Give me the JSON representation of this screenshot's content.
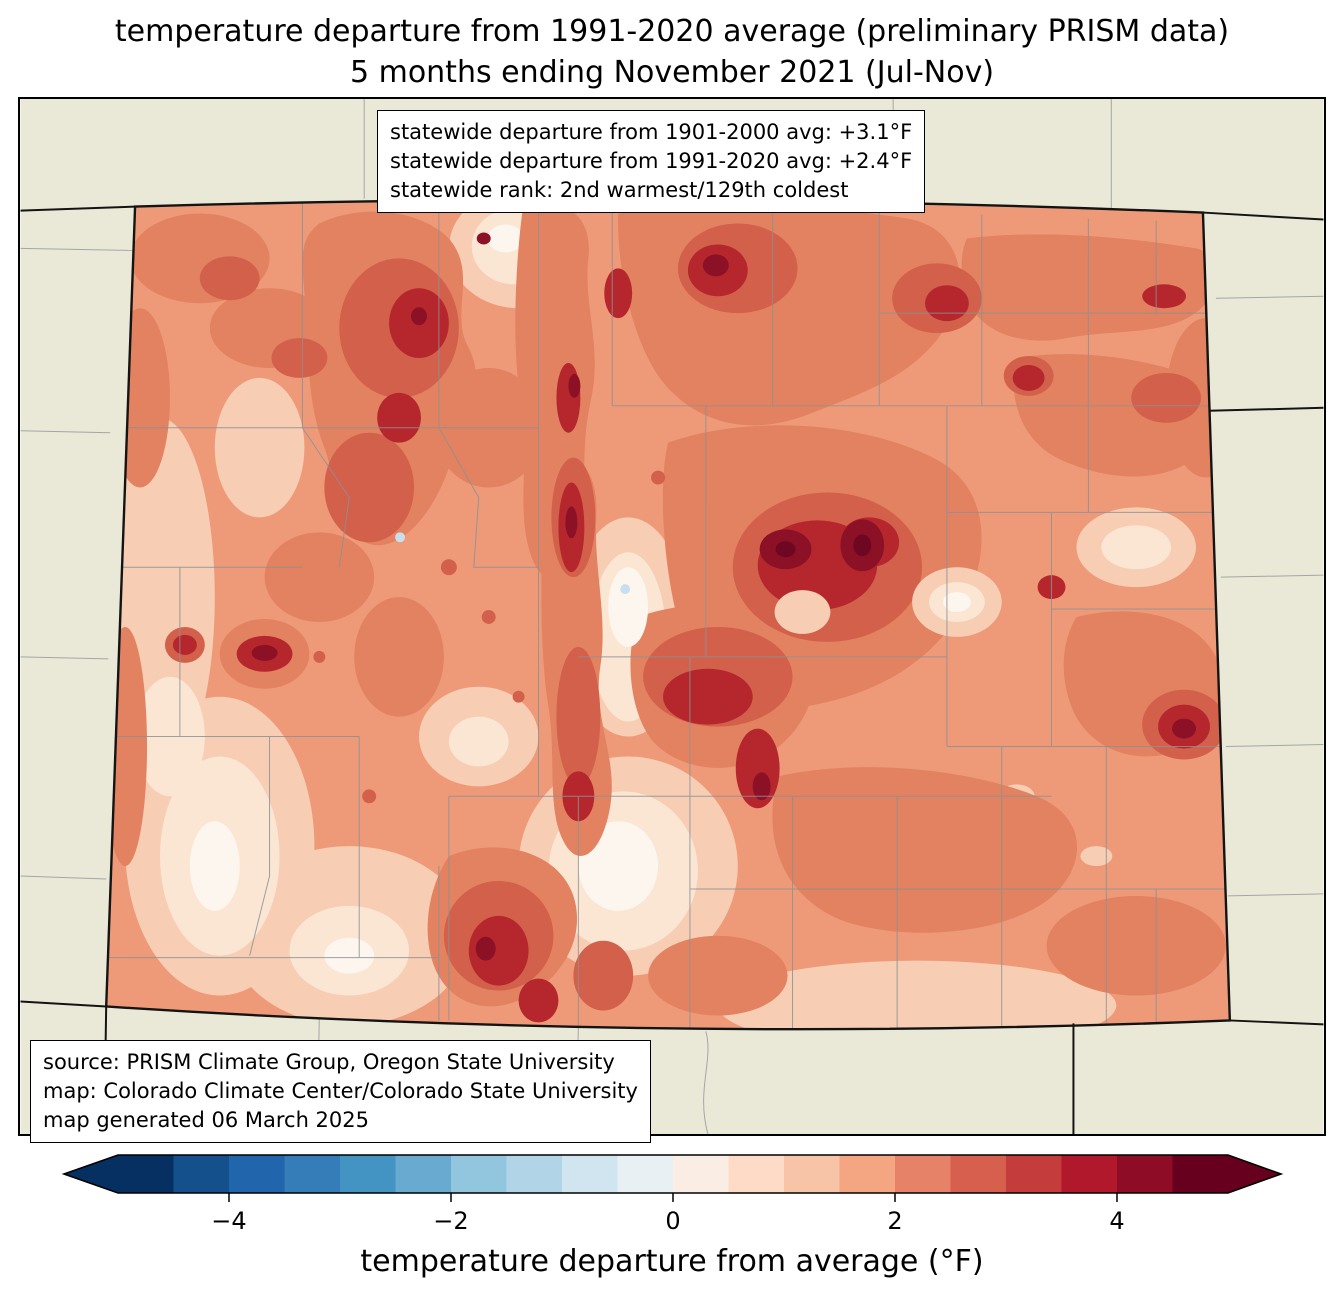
{
  "title": {
    "line1": "temperature departure from 1991-2020 average (preliminary PRISM data)",
    "line2": "5 months ending November 2021 (Jul-Nov)"
  },
  "stats_box": {
    "lines": [
      "statewide departure from 1901-2000 avg: +3.1°F",
      "statewide departure from 1991-2020 avg: +2.4°F",
      "statewide rank: 2nd warmest/129th coldest"
    ]
  },
  "source_box": {
    "lines": [
      "source: PRISM Climate Group, Oregon State University",
      "map: Colorado Climate Center/Colorado State University",
      "map generated 06 March 2025"
    ]
  },
  "map": {
    "state": "Colorado",
    "background_color": "#eae9d8",
    "palette": {
      "base": "#ee9a78",
      "light": "#f7cdb4",
      "cream": "#fbe6d4",
      "white": "#fdf6ee",
      "medium": "#e28260",
      "medium_deep": "#d2604b",
      "dark": "#b5272c",
      "maroon": "#8c1127",
      "deep_maroon": "#6d0722",
      "cool_spot": "#cadfee",
      "county_line": "#8b9196",
      "state_line": "#141414"
    }
  },
  "colorbar": {
    "label": "temperature departure from average (°F)",
    "domain": [
      -5,
      5
    ],
    "ticks": [
      {
        "label": "−4",
        "value": -4
      },
      {
        "label": "−2",
        "value": -2
      },
      {
        "label": "0",
        "value": 0
      },
      {
        "label": "2",
        "value": 2
      },
      {
        "label": "4",
        "value": 4
      }
    ],
    "segment_colors": [
      "#053061",
      "#14508c",
      "#2166ac",
      "#347db8",
      "#4393c3",
      "#69abd0",
      "#92c5de",
      "#b1d5e7",
      "#d1e5f0",
      "#e9f0f4",
      "#faeee4",
      "#fddbc7",
      "#f8c4a8",
      "#f4a582",
      "#e58268",
      "#d6604d",
      "#c43c3c",
      "#b2182b",
      "#8e0c25",
      "#67001f"
    ],
    "left_arrow_color": "#053061",
    "right_arrow_color": "#67001f"
  }
}
